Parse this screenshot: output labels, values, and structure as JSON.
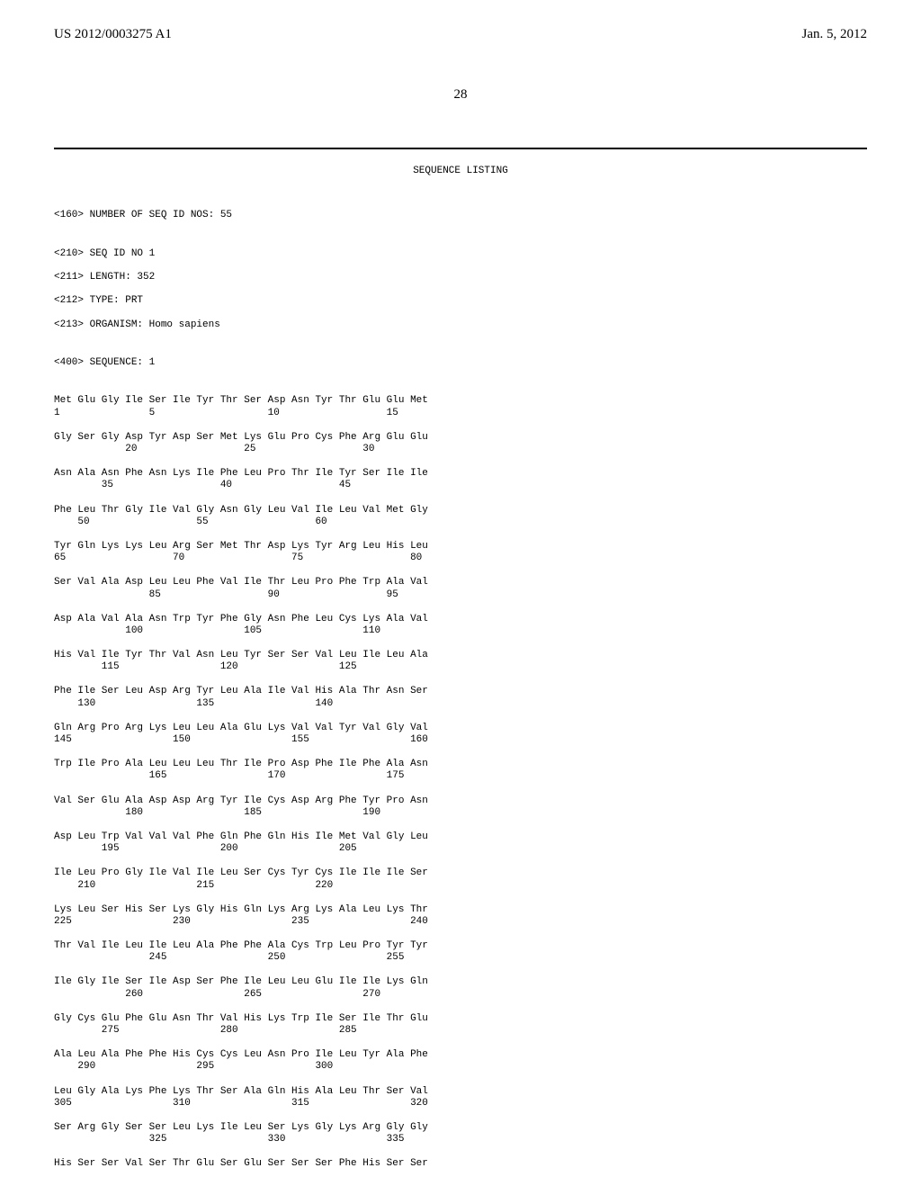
{
  "header": {
    "left": "US 2012/0003275 A1",
    "right": "Jan. 5, 2012"
  },
  "page_number": "28",
  "sequence_listing_title": "SEQUENCE LISTING",
  "meta": {
    "num_seq": "<160> NUMBER OF SEQ ID NOS: 55",
    "seq_id": "<210> SEQ ID NO 1",
    "length": "<211> LENGTH: 352",
    "type": "<212> TYPE: PRT",
    "organism": "<213> ORGANISM: Homo sapiens",
    "sequence": "<400> SEQUENCE: 1"
  },
  "rows": [
    {
      "aa": "Met Glu Gly Ile Ser Ile Tyr Thr Ser Asp Asn Tyr Thr Glu Glu Met",
      "nm": "1               5                   10                  15"
    },
    {
      "aa": "Gly Ser Gly Asp Tyr Asp Ser Met Lys Glu Pro Cys Phe Arg Glu Glu",
      "nm": "            20                  25                  30"
    },
    {
      "aa": "Asn Ala Asn Phe Asn Lys Ile Phe Leu Pro Thr Ile Tyr Ser Ile Ile",
      "nm": "        35                  40                  45"
    },
    {
      "aa": "Phe Leu Thr Gly Ile Val Gly Asn Gly Leu Val Ile Leu Val Met Gly",
      "nm": "    50                  55                  60"
    },
    {
      "aa": "Tyr Gln Lys Lys Leu Arg Ser Met Thr Asp Lys Tyr Arg Leu His Leu",
      "nm": "65                  70                  75                  80"
    },
    {
      "aa": "Ser Val Ala Asp Leu Leu Phe Val Ile Thr Leu Pro Phe Trp Ala Val",
      "nm": "                85                  90                  95"
    },
    {
      "aa": "Asp Ala Val Ala Asn Trp Tyr Phe Gly Asn Phe Leu Cys Lys Ala Val",
      "nm": "            100                 105                 110"
    },
    {
      "aa": "His Val Ile Tyr Thr Val Asn Leu Tyr Ser Ser Val Leu Ile Leu Ala",
      "nm": "        115                 120                 125"
    },
    {
      "aa": "Phe Ile Ser Leu Asp Arg Tyr Leu Ala Ile Val His Ala Thr Asn Ser",
      "nm": "    130                 135                 140"
    },
    {
      "aa": "Gln Arg Pro Arg Lys Leu Leu Ala Glu Lys Val Val Tyr Val Gly Val",
      "nm": "145                 150                 155                 160"
    },
    {
      "aa": "Trp Ile Pro Ala Leu Leu Leu Thr Ile Pro Asp Phe Ile Phe Ala Asn",
      "nm": "                165                 170                 175"
    },
    {
      "aa": "Val Ser Glu Ala Asp Asp Arg Tyr Ile Cys Asp Arg Phe Tyr Pro Asn",
      "nm": "            180                 185                 190"
    },
    {
      "aa": "Asp Leu Trp Val Val Val Phe Gln Phe Gln His Ile Met Val Gly Leu",
      "nm": "        195                 200                 205"
    },
    {
      "aa": "Ile Leu Pro Gly Ile Val Ile Leu Ser Cys Tyr Cys Ile Ile Ile Ser",
      "nm": "    210                 215                 220"
    },
    {
      "aa": "Lys Leu Ser His Ser Lys Gly His Gln Lys Arg Lys Ala Leu Lys Thr",
      "nm": "225                 230                 235                 240"
    },
    {
      "aa": "Thr Val Ile Leu Ile Leu Ala Phe Phe Ala Cys Trp Leu Pro Tyr Tyr",
      "nm": "                245                 250                 255"
    },
    {
      "aa": "Ile Gly Ile Ser Ile Asp Ser Phe Ile Leu Leu Glu Ile Ile Lys Gln",
      "nm": "            260                 265                 270"
    },
    {
      "aa": "Gly Cys Glu Phe Glu Asn Thr Val His Lys Trp Ile Ser Ile Thr Glu",
      "nm": "        275                 280                 285"
    },
    {
      "aa": "Ala Leu Ala Phe Phe His Cys Cys Leu Asn Pro Ile Leu Tyr Ala Phe",
      "nm": "    290                 295                 300"
    },
    {
      "aa": "Leu Gly Ala Lys Phe Lys Thr Ser Ala Gln His Ala Leu Thr Ser Val",
      "nm": "305                 310                 315                 320"
    },
    {
      "aa": "Ser Arg Gly Ser Ser Leu Lys Ile Leu Ser Lys Gly Lys Arg Gly Gly",
      "nm": "                325                 330                 335"
    },
    {
      "aa": "His Ser Ser Val Ser Thr Glu Ser Glu Ser Ser Ser Phe His Ser Ser",
      "nm": ""
    }
  ]
}
